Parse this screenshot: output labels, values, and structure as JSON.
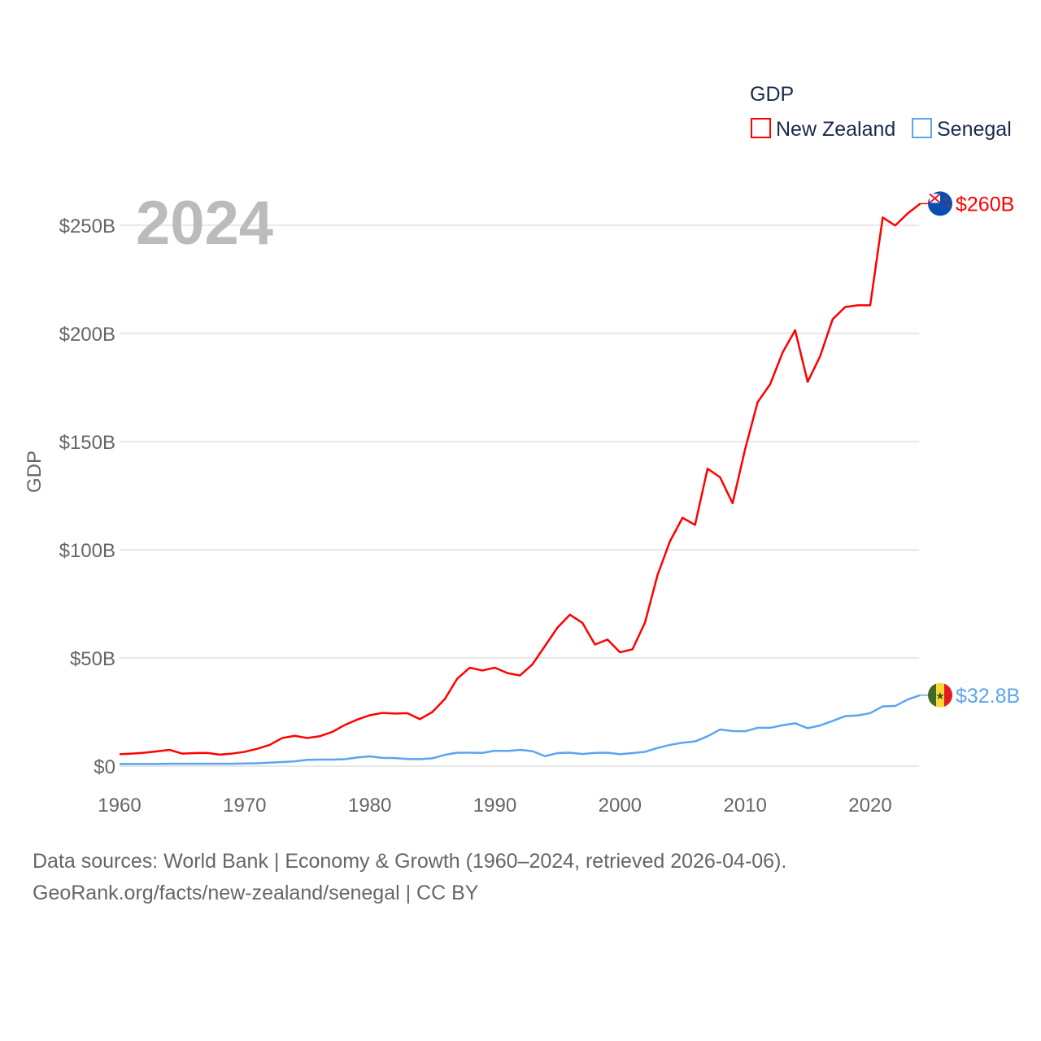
{
  "chart_data": {
    "type": "line",
    "title": "GDP",
    "year_label": "2024",
    "ylabel": "GDP",
    "xlabel": "",
    "xlim": [
      1960,
      2024
    ],
    "ylim": [
      0,
      260
    ],
    "x_ticks": [
      "1960",
      "1970",
      "1980",
      "1990",
      "2000",
      "2010",
      "2020"
    ],
    "x_tick_values": [
      1960,
      1970,
      1980,
      1990,
      2000,
      2010,
      2020
    ],
    "y_ticks": [
      "$0",
      "$50B",
      "$100B",
      "$150B",
      "$200B",
      "$250B"
    ],
    "y_tick_values": [
      0,
      50,
      100,
      150,
      200,
      250
    ],
    "units": "billion USD",
    "legend_position": "top-right",
    "grid": true,
    "x": [
      1960,
      1961,
      1962,
      1963,
      1964,
      1965,
      1966,
      1967,
      1968,
      1969,
      1970,
      1971,
      1972,
      1973,
      1974,
      1975,
      1976,
      1977,
      1978,
      1979,
      1980,
      1981,
      1982,
      1983,
      1984,
      1985,
      1986,
      1987,
      1988,
      1989,
      1990,
      1991,
      1992,
      1993,
      1994,
      1995,
      1996,
      1997,
      1998,
      1999,
      2000,
      2001,
      2002,
      2003,
      2004,
      2005,
      2006,
      2007,
      2008,
      2009,
      2010,
      2011,
      2012,
      2013,
      2014,
      2015,
      2016,
      2017,
      2018,
      2019,
      2020,
      2021,
      2022,
      2023,
      2024
    ],
    "series": [
      {
        "name": "New Zealand",
        "color": "#ff0000",
        "end_label": "$260B",
        "flag": "new-zealand-flag",
        "values": [
          5.5,
          5.8,
          6.2,
          6.8,
          7.5,
          5.8,
          6.0,
          6.1,
          5.3,
          5.8,
          6.6,
          8.0,
          9.8,
          13.0,
          14.0,
          13.0,
          13.8,
          15.8,
          19.0,
          21.5,
          23.5,
          24.6,
          24.3,
          24.5,
          21.7,
          25.0,
          31.0,
          40.5,
          45.5,
          44.2,
          45.5,
          43.0,
          41.9,
          47.0,
          55.5,
          64.0,
          70.0,
          66.2,
          56.2,
          58.5,
          52.6,
          54.0,
          66.4,
          88.3,
          104.0,
          114.8,
          111.5,
          137.5,
          133.5,
          121.5,
          146.5,
          168.2,
          176.5,
          191.2,
          201.5,
          177.6,
          189.5,
          206.6,
          212.2,
          213.0,
          213.0,
          253.6,
          249.9,
          255.5,
          260.0
        ]
      },
      {
        "name": "Senegal",
        "color": "#5aa5f0",
        "end_label": "$32.8B",
        "flag": "senegal-flag",
        "values": [
          1.0,
          1.0,
          1.0,
          1.0,
          1.1,
          1.1,
          1.1,
          1.1,
          1.1,
          1.1,
          1.2,
          1.3,
          1.6,
          1.9,
          2.2,
          2.9,
          3.0,
          3.0,
          3.2,
          4.0,
          4.5,
          3.8,
          3.7,
          3.3,
          3.2,
          3.6,
          5.2,
          6.2,
          6.2,
          6.1,
          7.1,
          7.0,
          7.5,
          6.9,
          4.6,
          6.0,
          6.2,
          5.6,
          6.1,
          6.2,
          5.5,
          6.0,
          6.6,
          8.4,
          9.8,
          10.8,
          11.4,
          13.8,
          16.9,
          16.2,
          16.1,
          17.7,
          17.7,
          18.9,
          19.8,
          17.5,
          18.8,
          20.9,
          23.1,
          23.4,
          24.5,
          27.6,
          27.8,
          30.8,
          32.8
        ]
      }
    ]
  },
  "footer": {
    "line1": "Data sources: World Bank | Economy & Growth (1960–2024, retrieved 2026-04-06).",
    "line2": "GeoRank.org/facts/new-zealand/senegal | CC BY"
  }
}
